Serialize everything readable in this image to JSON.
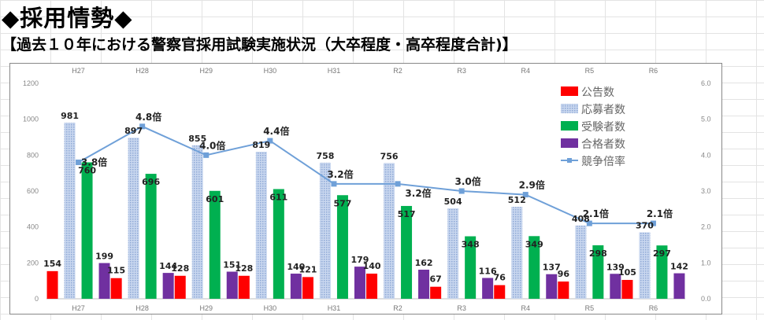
{
  "page": {
    "heading": "◆採用情勢◆",
    "subheading": "【過去１０年における警察官採用試験実施状況（大卒程度・高卒程度合計)】"
  },
  "chart_data": {
    "type": "bar",
    "categories": [
      "H27",
      "H28",
      "H29",
      "H30",
      "H31",
      "R2",
      "R3",
      "R4",
      "R5",
      "R6"
    ],
    "series": [
      {
        "name": "公告数",
        "values": [
          154,
          115,
          128,
          128,
          121,
          140,
          67,
          76,
          96,
          105
        ],
        "color": "#ff0000"
      },
      {
        "name": "応募者数",
        "values": [
          981,
          897,
          855,
          819,
          758,
          756,
          504,
          512,
          408,
          370
        ],
        "color": "#b8c8e8"
      },
      {
        "name": "受験者数",
        "values": [
          760,
          696,
          601,
          611,
          577,
          517,
          348,
          349,
          298,
          297
        ],
        "color": "#00b050"
      },
      {
        "name": "合格者数",
        "values": [
          199,
          144,
          151,
          140,
          179,
          162,
          116,
          137,
          139,
          142
        ],
        "color": "#7030a0"
      }
    ],
    "line_series": {
      "name": "競争倍率",
      "type": "line",
      "axis": "right",
      "values": [
        3.8,
        4.8,
        4.0,
        4.4,
        3.2,
        3.2,
        3.0,
        2.9,
        2.1,
        2.1
      ],
      "labels": [
        "3.8倍",
        "4.8倍",
        "4.0倍",
        "4.4倍",
        "3.2倍",
        "3.2倍",
        "3.0倍",
        "2.9倍",
        "2.1倍",
        "2.1倍"
      ],
      "color": "#6fa0d8"
    },
    "y_left": {
      "min": 0,
      "max": 1200,
      "ticks": [
        "0",
        "200",
        "400",
        "600",
        "800",
        "1000",
        "1200"
      ]
    },
    "y_right": {
      "min": 0,
      "max": 6,
      "ticks": [
        "0.0",
        "1.0",
        "2.0",
        "3.0",
        "4.0",
        "5.0",
        "6.0"
      ]
    },
    "legend_position": "top-right",
    "grid": false
  }
}
